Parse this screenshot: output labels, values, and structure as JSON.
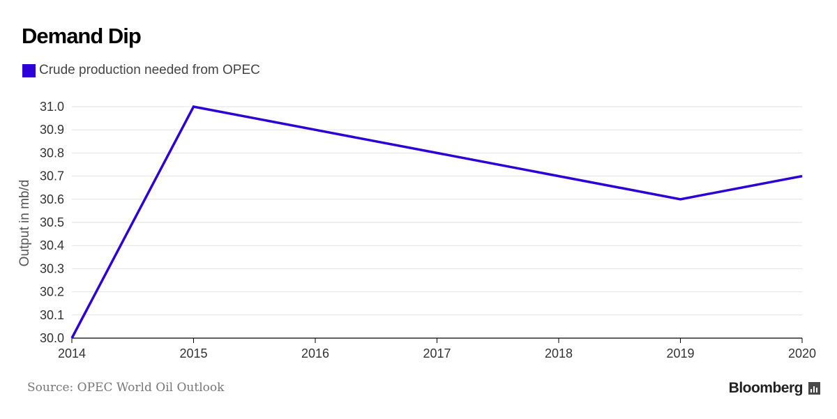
{
  "title": "Demand Dip",
  "legend_label": "Crude production needed from OPEC",
  "ylabel": "Output in mb/d",
  "source": "Source: OPEC World Oil Outlook",
  "brand": "Bloomberg",
  "brand_icon": "bloomberg-chart-icon",
  "colors": {
    "series": "#2d00d6",
    "grid": "#e2e2e2",
    "axis": "#000000"
  },
  "chart_data": {
    "type": "line",
    "title": "Demand Dip",
    "xlabel": "",
    "ylabel": "Output in mb/d",
    "x": [
      2014,
      2015,
      2016,
      2017,
      2018,
      2019,
      2020
    ],
    "x_tick_labels": [
      "2014",
      "2015",
      "2016",
      "2017",
      "2018",
      "2019",
      "2020"
    ],
    "y_tick_labels": [
      "30.0",
      "30.1",
      "30.2",
      "30.3",
      "30.4",
      "30.5",
      "30.6",
      "30.7",
      "30.8",
      "30.9",
      "31.0"
    ],
    "ylim": [
      30.0,
      31.0
    ],
    "grid": true,
    "legend_position": "top-left",
    "series": [
      {
        "name": "Crude production needed from OPEC",
        "values": [
          30.0,
          31.0,
          30.9,
          30.8,
          30.7,
          30.6,
          30.7
        ]
      }
    ]
  }
}
